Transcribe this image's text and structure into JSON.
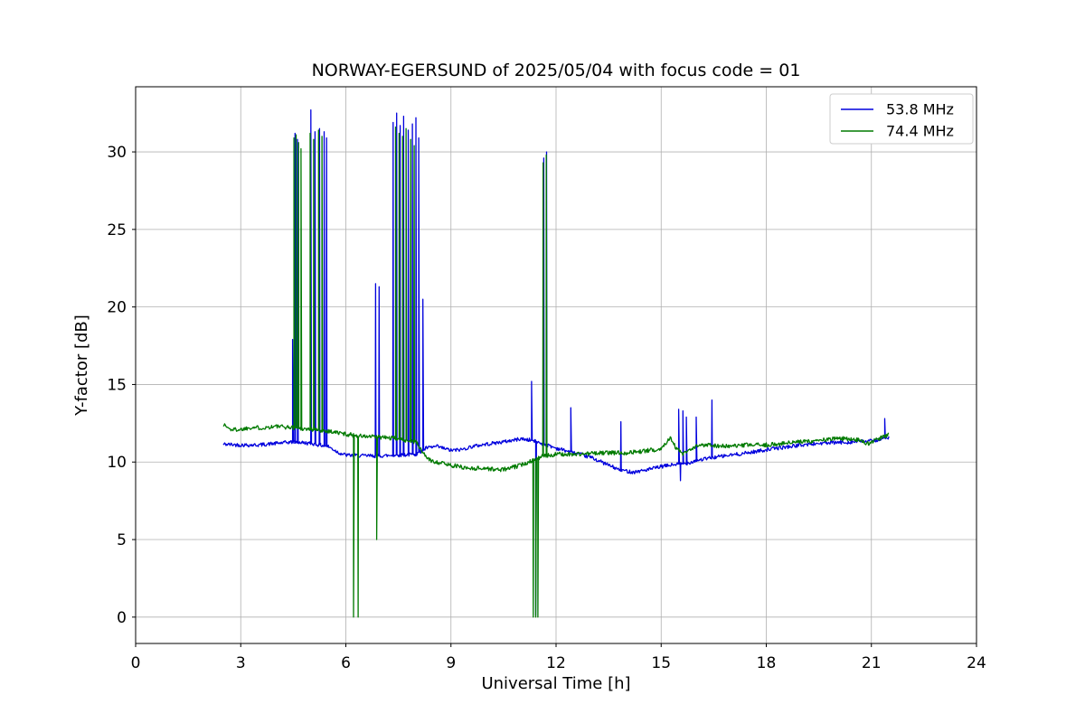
{
  "chart_data": {
    "type": "line",
    "title": "NORWAY-EGERSUND of 2025/05/04 with focus code = 01",
    "xlabel": "Universal Time [h]",
    "ylabel": "Y-factor [dB]",
    "xlim": [
      0,
      24
    ],
    "ylim": [
      -1.7,
      34.2
    ],
    "xticks": [
      0,
      3,
      6,
      9,
      12,
      15,
      18,
      21,
      24
    ],
    "yticks": [
      0,
      5,
      10,
      15,
      20,
      25,
      30
    ],
    "grid": true,
    "legend_position": "upper right",
    "series": [
      {
        "name": "53.8 MHz",
        "color": "#0000dd",
        "seed": 42,
        "noise": 0.12,
        "x_range": [
          2.5,
          21.5
        ],
        "baseline": [
          [
            2.5,
            11.15
          ],
          [
            3.0,
            11.1
          ],
          [
            3.5,
            11.1
          ],
          [
            4.0,
            11.2
          ],
          [
            4.5,
            11.3
          ],
          [
            5.0,
            11.2
          ],
          [
            5.5,
            11.0
          ],
          [
            5.8,
            10.6
          ],
          [
            6.0,
            10.45
          ],
          [
            6.5,
            10.4
          ],
          [
            7.0,
            10.4
          ],
          [
            7.5,
            10.45
          ],
          [
            8.0,
            10.5
          ],
          [
            8.3,
            10.9
          ],
          [
            8.6,
            11.0
          ],
          [
            9.0,
            10.75
          ],
          [
            9.3,
            10.8
          ],
          [
            9.6,
            11.0
          ],
          [
            10.0,
            11.15
          ],
          [
            10.5,
            11.3
          ],
          [
            11.0,
            11.5
          ],
          [
            11.3,
            11.4
          ],
          [
            11.6,
            11.2
          ],
          [
            12.0,
            10.9
          ],
          [
            12.5,
            10.6
          ],
          [
            13.0,
            10.3
          ],
          [
            13.5,
            9.8
          ],
          [
            13.8,
            9.5
          ],
          [
            14.2,
            9.35
          ],
          [
            14.6,
            9.5
          ],
          [
            15.0,
            9.7
          ],
          [
            15.4,
            9.85
          ],
          [
            15.7,
            9.9
          ],
          [
            16.0,
            10.1
          ],
          [
            16.5,
            10.3
          ],
          [
            17.0,
            10.45
          ],
          [
            17.5,
            10.6
          ],
          [
            18.0,
            10.8
          ],
          [
            18.5,
            10.95
          ],
          [
            19.0,
            11.1
          ],
          [
            19.5,
            11.2
          ],
          [
            20.0,
            11.25
          ],
          [
            20.5,
            11.3
          ],
          [
            21.0,
            11.35
          ],
          [
            21.5,
            11.6
          ]
        ],
        "spikes": [
          [
            4.48,
            17.9
          ],
          [
            4.55,
            31.2
          ],
          [
            4.62,
            30.8
          ],
          [
            5.0,
            32.7
          ],
          [
            5.12,
            31.3
          ],
          [
            5.25,
            31.5
          ],
          [
            5.38,
            31.3
          ],
          [
            5.45,
            30.9
          ],
          [
            6.85,
            21.5
          ],
          [
            6.95,
            21.3
          ],
          [
            7.35,
            31.9
          ],
          [
            7.45,
            32.5
          ],
          [
            7.55,
            31.7
          ],
          [
            7.65,
            32.3
          ],
          [
            7.78,
            31.4
          ],
          [
            7.9,
            31.8
          ],
          [
            8.0,
            32.2
          ],
          [
            8.08,
            30.9
          ],
          [
            8.2,
            20.5
          ],
          [
            11.3,
            15.2
          ],
          [
            11.42,
            0.1
          ],
          [
            11.65,
            29.6
          ],
          [
            11.73,
            30.0
          ],
          [
            12.42,
            13.5
          ],
          [
            13.85,
            12.6
          ],
          [
            15.5,
            13.4
          ],
          [
            15.55,
            8.8
          ],
          [
            15.62,
            13.3
          ],
          [
            15.72,
            12.9
          ],
          [
            16.0,
            12.9
          ],
          [
            16.45,
            14.0
          ],
          [
            21.38,
            12.8
          ]
        ]
      },
      {
        "name": "74.4 MHz",
        "color": "#007a00",
        "seed": 1337,
        "noise": 0.14,
        "x_range": [
          2.5,
          21.5
        ],
        "baseline": [
          [
            2.5,
            12.45
          ],
          [
            2.7,
            12.1
          ],
          [
            3.0,
            12.1
          ],
          [
            3.3,
            12.25
          ],
          [
            3.6,
            12.2
          ],
          [
            4.0,
            12.3
          ],
          [
            4.3,
            12.25
          ],
          [
            4.6,
            12.2
          ],
          [
            5.0,
            12.1
          ],
          [
            5.5,
            12.0
          ],
          [
            6.0,
            11.8
          ],
          [
            6.5,
            11.65
          ],
          [
            7.0,
            11.6
          ],
          [
            7.5,
            11.5
          ],
          [
            8.0,
            11.3
          ],
          [
            8.2,
            10.6
          ],
          [
            8.4,
            10.1
          ],
          [
            8.7,
            9.95
          ],
          [
            9.0,
            9.8
          ],
          [
            9.5,
            9.6
          ],
          [
            10.0,
            9.6
          ],
          [
            10.3,
            9.5
          ],
          [
            10.6,
            9.55
          ],
          [
            11.0,
            9.8
          ],
          [
            11.3,
            10.1
          ],
          [
            11.6,
            10.35
          ],
          [
            12.0,
            10.5
          ],
          [
            12.5,
            10.5
          ],
          [
            13.0,
            10.55
          ],
          [
            13.5,
            10.6
          ],
          [
            14.0,
            10.6
          ],
          [
            14.5,
            10.7
          ],
          [
            15.0,
            10.85
          ],
          [
            15.25,
            11.6
          ],
          [
            15.4,
            11.0
          ],
          [
            15.6,
            10.5
          ],
          [
            15.8,
            10.7
          ],
          [
            16.0,
            11.0
          ],
          [
            16.3,
            11.15
          ],
          [
            16.6,
            11.05
          ],
          [
            17.0,
            11.0
          ],
          [
            17.5,
            11.1
          ],
          [
            18.0,
            11.1
          ],
          [
            18.5,
            11.2
          ],
          [
            19.0,
            11.3
          ],
          [
            19.5,
            11.4
          ],
          [
            20.0,
            11.5
          ],
          [
            20.5,
            11.5
          ],
          [
            20.9,
            11.2
          ],
          [
            21.1,
            11.4
          ],
          [
            21.5,
            11.75
          ]
        ],
        "spikes": [
          [
            4.52,
            30.9
          ],
          [
            4.58,
            31.1
          ],
          [
            4.65,
            30.6
          ],
          [
            4.72,
            30.2
          ],
          [
            4.98,
            31.2
          ],
          [
            5.08,
            30.8
          ],
          [
            5.22,
            31.4
          ],
          [
            5.32,
            31.0
          ],
          [
            6.22,
            0.0
          ],
          [
            6.35,
            0.0
          ],
          [
            6.88,
            5.0
          ],
          [
            7.42,
            31.6
          ],
          [
            7.52,
            31.2
          ],
          [
            7.62,
            31.0
          ],
          [
            7.72,
            31.5
          ],
          [
            7.85,
            30.8
          ],
          [
            7.95,
            30.4
          ],
          [
            11.35,
            0.0
          ],
          [
            11.42,
            0.0
          ],
          [
            11.48,
            0.0
          ],
          [
            11.63,
            29.3
          ],
          [
            11.72,
            29.8
          ]
        ]
      }
    ]
  }
}
